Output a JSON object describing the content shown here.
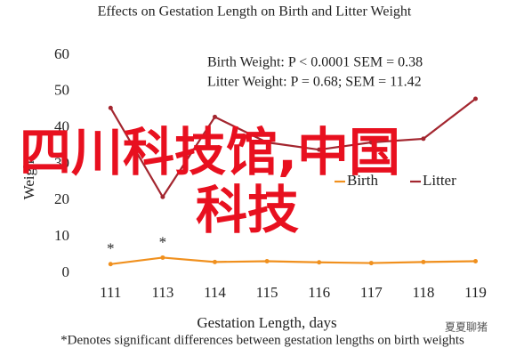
{
  "chart_data": {
    "type": "line",
    "title": "Effects on Gestation Length on Birth and Litter Weight",
    "x_label": "Gestation Length, days",
    "y_label": "Weight",
    "categories": [
      "111",
      "113",
      "114",
      "115",
      "116",
      "117",
      "118",
      "119"
    ],
    "series": [
      {
        "name": "Birth",
        "color": "#f0901e",
        "values": [
          2.5,
          4.3,
          3.1,
          3.3,
          3.0,
          2.8,
          3.1,
          3.3
        ]
      },
      {
        "name": "Litter",
        "color": "#a3262f",
        "values": [
          45.5,
          21,
          43,
          36,
          34,
          36,
          37,
          48
        ]
      }
    ],
    "significance_marks": [
      "*",
      "*",
      null,
      null,
      null,
      null,
      null,
      null
    ],
    "annotations": [
      "Birth Weight: P < 0.0001 SEM = 0.38",
      "Litter Weight: P = 0.68; SEM = 11.42"
    ],
    "footnote": "*Denotes significant differences between gestation lengths on birth weights",
    "overlay": [
      "四川科技馆,中国",
      "科技"
    ],
    "watermark": "夏夏聊猪",
    "ylim": [
      0,
      60
    ],
    "yticks": [
      0,
      10,
      20,
      30,
      40,
      50,
      60
    ],
    "grid": false
  }
}
